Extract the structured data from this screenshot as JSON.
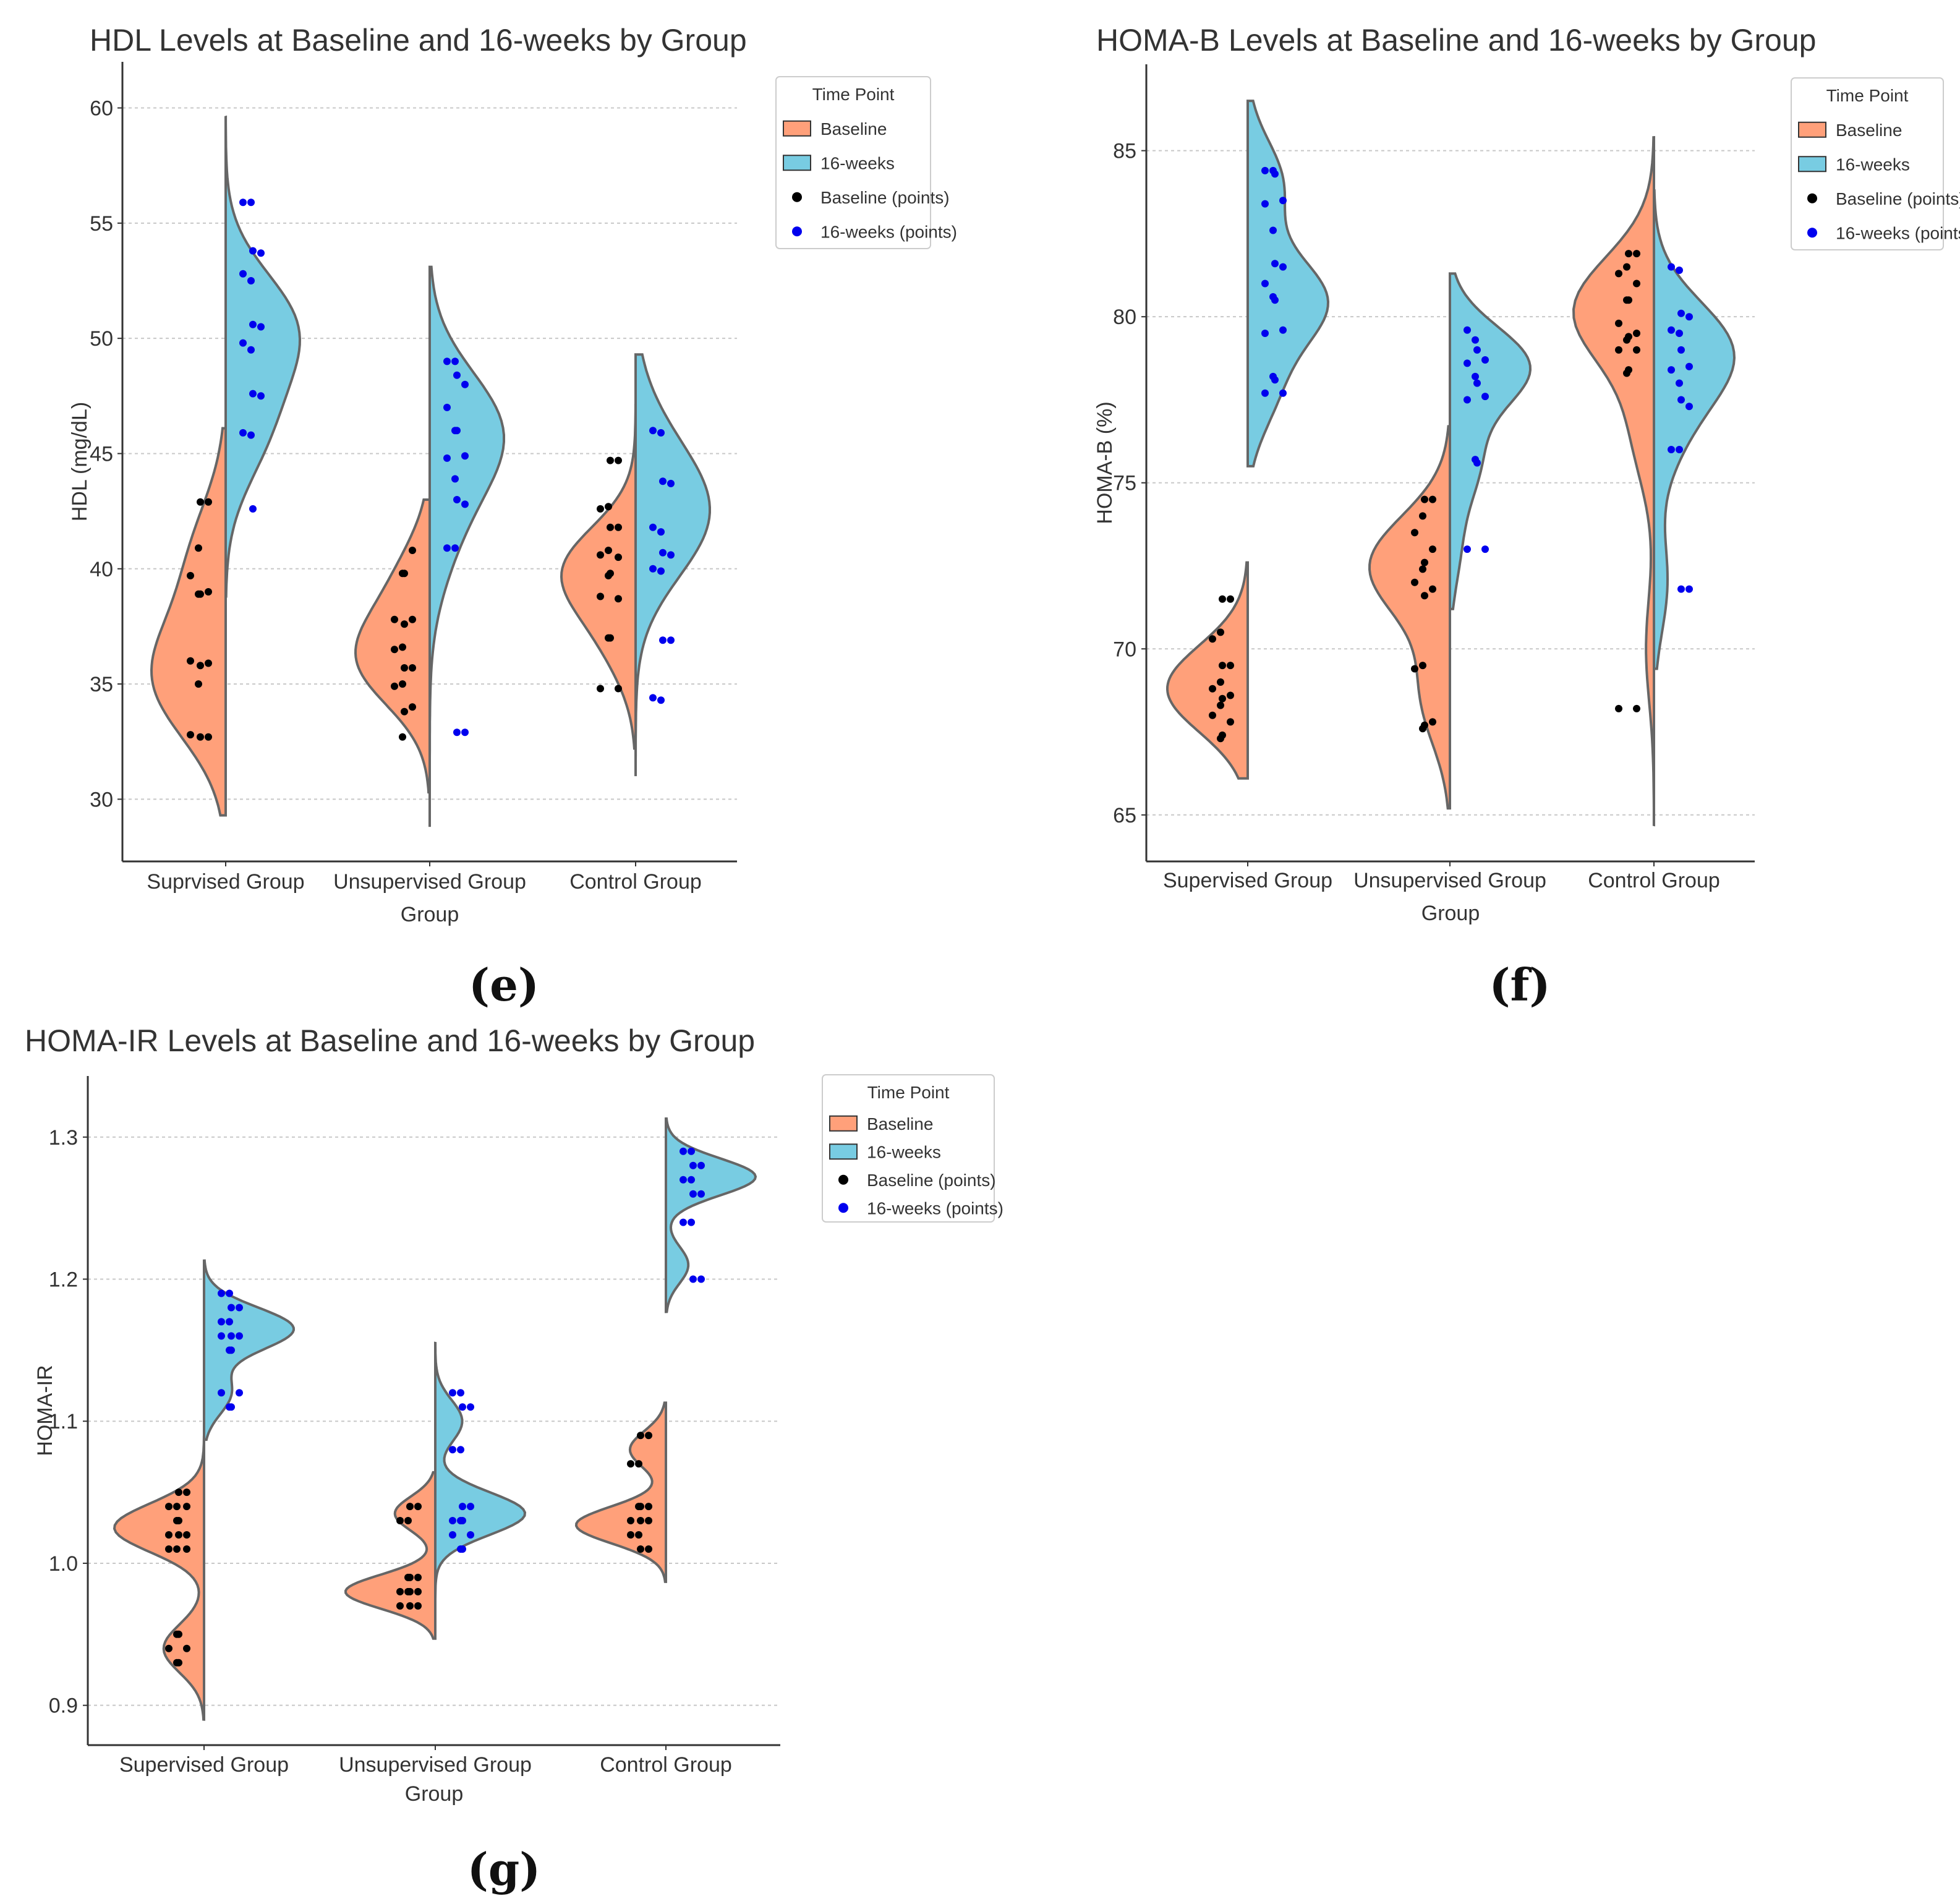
{
  "colors": {
    "baseline": "#FFA07A",
    "week16": "#78CCE2",
    "baseline_points": "#000000",
    "week16_points": "#0000EE"
  },
  "chart_data": [
    {
      "id": "e",
      "type": "violin",
      "panel_label": "(e)",
      "title": "HDL Levels at Baseline and 16-weeks by Group",
      "xlabel": "Group",
      "ylabel": "HDL (mg/dL)",
      "ylim": [
        27.3,
        62.0
      ],
      "yticks": [
        30,
        35,
        40,
        45,
        50,
        55,
        60
      ],
      "grid": true,
      "categories": [
        "Suprvised Group",
        "Unsupervised Group",
        "Control Group"
      ],
      "legend": {
        "position": "upper-right-outside",
        "title": "Time Point",
        "entries": [
          "Baseline",
          "16-weeks",
          "Baseline (points)",
          "16-weeks (points)"
        ]
      },
      "series": [
        {
          "name": "Baseline",
          "groups": [
            {
              "range": [
                29.3,
                46.1
              ],
              "peaks": [
                [
                  35.2,
                  1.0
                ],
                [
                  40.5,
                  0.45
                ]
              ],
              "bw": 2.6,
              "points": [
                42.9,
                42.9,
                40.9,
                39.7,
                39.0,
                38.9,
                38.9,
                36.0,
                35.9,
                35.8,
                35.0,
                32.8,
                32.7,
                32.7
              ]
            },
            {
              "range": [
                30.3,
                43.0
              ],
              "peaks": [
                [
                  36.0,
                  1.0
                ],
                [
                  39.5,
                  0.4
                ]
              ],
              "bw": 2.0,
              "points": [
                40.8,
                39.8,
                39.8,
                37.8,
                37.8,
                37.6,
                36.6,
                36.5,
                35.7,
                35.7,
                35.0,
                34.9,
                34.0,
                33.8,
                32.7
              ]
            },
            {
              "range": [
                32.2,
                47.1
              ],
              "peaks": [
                [
                  40.0,
                  1.0
                ],
                [
                  36.8,
                  0.35
                ]
              ],
              "bw": 1.9,
              "points": [
                44.7,
                44.7,
                42.7,
                42.6,
                41.8,
                41.8,
                40.8,
                40.6,
                40.5,
                39.8,
                39.7,
                38.8,
                38.7,
                37.0,
                37.0,
                34.8,
                34.8
              ]
            }
          ]
        },
        {
          "name": "16-weeks",
          "groups": [
            {
              "range": [
                38.8,
                59.6
              ],
              "peaks": [
                [
                  50.5,
                  1.0
                ],
                [
                  46.0,
                  0.55
                ]
              ],
              "bw": 2.4,
              "points": [
                55.9,
                55.9,
                53.8,
                53.7,
                52.8,
                52.5,
                50.6,
                50.5,
                49.8,
                49.5,
                47.6,
                47.5,
                45.9,
                45.8,
                42.6
              ]
            },
            {
              "range": [
                28.8,
                53.1
              ],
              "peaks": [
                [
                  46.0,
                  1.0
                ],
                [
                  41.5,
                  0.3
                ]
              ],
              "bw": 2.6,
              "points": [
                49.0,
                49.0,
                48.4,
                48.0,
                47.0,
                46.0,
                46.0,
                44.9,
                44.8,
                43.9,
                43.0,
                42.8,
                40.9,
                40.9,
                32.9,
                32.9
              ]
            },
            {
              "range": [
                31.0,
                49.3
              ],
              "peaks": [
                [
                  42.0,
                  1.0
                ],
                [
                  45.0,
                  0.35
                ]
              ],
              "bw": 2.6,
              "points": [
                46.0,
                45.9,
                43.8,
                43.7,
                41.8,
                41.6,
                40.7,
                40.6,
                40.0,
                39.9,
                36.9,
                36.9,
                34.4,
                34.3
              ]
            }
          ]
        }
      ]
    },
    {
      "id": "f",
      "type": "violin",
      "panel_label": "(f)",
      "title": "HOMA-B Levels at Baseline and 16-weeks by Group",
      "xlabel": "Group",
      "ylabel": "HOMA-B (%)",
      "ylim": [
        63.6,
        87.6
      ],
      "yticks": [
        65,
        70,
        75,
        80,
        85
      ],
      "grid": true,
      "categories": [
        "Supervised Group",
        "Unsupervised Group",
        "Control Group"
      ],
      "legend": {
        "position": "upper-right-outside",
        "title": "Time Point",
        "entries": [
          "Baseline",
          "16-weeks",
          "Baseline (points)",
          "16-weeks (points)"
        ]
      },
      "series": [
        {
          "name": "Baseline",
          "groups": [
            {
              "range": [
                66.1,
                72.6
              ],
              "peaks": [
                [
                  68.8,
                  1.0
                ]
              ],
              "bw": 1.3,
              "points": [
                71.5,
                71.5,
                70.5,
                70.3,
                69.5,
                69.5,
                69.0,
                68.8,
                68.6,
                68.5,
                68.3,
                68.0,
                67.8,
                67.4,
                67.3
              ]
            },
            {
              "range": [
                65.2,
                76.7
              ],
              "peaks": [
                [
                  72.5,
                  1.0
                ],
                [
                  68.6,
                  0.35
                ]
              ],
              "bw": 1.5,
              "points": [
                74.5,
                74.5,
                74.0,
                73.5,
                73.0,
                72.6,
                72.4,
                72.0,
                71.8,
                71.6,
                69.5,
                69.4,
                67.8,
                67.7,
                67.6
              ]
            },
            {
              "range": [
                64.7,
                85.4
              ],
              "peaks": [
                [
                  80.2,
                  1.0
                ],
                [
                  76.5,
                  0.25
                ],
                [
                  70.0,
                  0.1
                ]
              ],
              "bw": 1.6,
              "points": [
                81.9,
                81.9,
                81.5,
                81.3,
                81.0,
                80.5,
                80.5,
                79.8,
                79.5,
                79.4,
                79.3,
                79.0,
                79.0,
                78.4,
                78.3,
                68.2,
                68.2
              ]
            }
          ]
        },
        {
          "name": "16-weeks",
          "groups": [
            {
              "range": [
                75.5,
                86.5
              ],
              "peaks": [
                [
                  80.5,
                  1.0
                ],
                [
                  84.0,
                  0.45
                ],
                [
                  77.8,
                  0.35
                ]
              ],
              "bw": 1.3,
              "points": [
                84.4,
                84.4,
                84.3,
                83.5,
                83.4,
                82.6,
                81.6,
                81.5,
                81.0,
                80.6,
                80.5,
                79.6,
                79.5,
                78.2,
                78.1,
                77.7,
                77.7
              ]
            },
            {
              "range": [
                71.2,
                81.3
              ],
              "peaks": [
                [
                  78.5,
                  1.0
                ],
                [
                  75.6,
                  0.35
                ],
                [
                  73.0,
                  0.12
                ]
              ],
              "bw": 1.2,
              "points": [
                79.6,
                79.3,
                79.0,
                78.7,
                78.6,
                78.2,
                78.0,
                77.6,
                77.5,
                75.7,
                75.6,
                73.0,
                73.0
              ]
            },
            {
              "range": [
                69.4,
                83.8
              ],
              "peaks": [
                [
                  79.0,
                  1.0
                ],
                [
                  76.5,
                  0.3
                ],
                [
                  72.0,
                  0.18
                ]
              ],
              "bw": 1.5,
              "points": [
                81.5,
                81.4,
                80.1,
                80.0,
                79.6,
                79.5,
                79.0,
                78.5,
                78.4,
                78.0,
                77.5,
                77.3,
                76.0,
                76.0,
                71.8,
                71.8
              ]
            }
          ]
        }
      ]
    },
    {
      "id": "g",
      "type": "violin",
      "panel_label": "(g)",
      "title": "HOMA-IR Levels at Baseline and 16-weeks by Group",
      "xlabel": "Group",
      "ylabel": "HOMA-IR",
      "ylim": [
        0.872,
        1.343
      ],
      "yticks": [
        "0.9",
        "1.0",
        "1.1",
        "1.2",
        "1.3"
      ],
      "grid": true,
      "categories": [
        "Supervised Group",
        "Unsupervised Group",
        "Control Group"
      ],
      "legend": {
        "position": "upper-right-outside",
        "title": "Time Point",
        "entries": [
          "Baseline",
          "16-weeks",
          "Baseline (points)",
          "16-weeks (points)"
        ]
      },
      "series": [
        {
          "name": "Baseline",
          "groups": [
            {
              "range": [
                0.89,
                1.089
              ],
              "peaks": [
                [
                  1.025,
                  1.0
                ],
                [
                  0.94,
                  0.45
                ]
              ],
              "bw": 0.017,
              "points": [
                1.05,
                1.05,
                1.04,
                1.04,
                1.04,
                1.03,
                1.03,
                1.02,
                1.02,
                1.02,
                1.01,
                1.01,
                1.01,
                0.95,
                0.95,
                0.94,
                0.94,
                0.93,
                0.93
              ]
            },
            {
              "range": [
                0.947,
                1.064
              ],
              "peaks": [
                [
                  0.98,
                  1.0
                ],
                [
                  1.035,
                  0.45
                ]
              ],
              "bw": 0.012,
              "points": [
                1.04,
                1.04,
                1.03,
                1.03,
                0.99,
                0.99,
                0.99,
                0.98,
                0.98,
                0.98,
                0.98,
                0.97,
                0.97,
                0.97
              ]
            },
            {
              "range": [
                0.987,
                1.113
              ],
              "peaks": [
                [
                  1.027,
                  1.0
                ],
                [
                  1.08,
                  0.4
                ]
              ],
              "bw": 0.013,
              "points": [
                1.09,
                1.09,
                1.07,
                1.07,
                1.04,
                1.04,
                1.04,
                1.03,
                1.03,
                1.03,
                1.02,
                1.02,
                1.01,
                1.01
              ]
            }
          ]
        },
        {
          "name": "16-weeks",
          "groups": [
            {
              "range": [
                1.087,
                1.213
              ],
              "peaks": [
                [
                  1.165,
                  1.0
                ],
                [
                  1.12,
                  0.3
                ]
              ],
              "bw": 0.015,
              "points": [
                1.19,
                1.19,
                1.18,
                1.18,
                1.17,
                1.17,
                1.16,
                1.16,
                1.16,
                1.15,
                1.15,
                1.12,
                1.12,
                1.11,
                1.11
              ]
            },
            {
              "range": [
                0.975,
                1.155
              ],
              "peaks": [
                [
                  1.035,
                  1.0
                ],
                [
                  1.1,
                  0.3
                ]
              ],
              "bw": 0.015,
              "points": [
                1.12,
                1.12,
                1.11,
                1.11,
                1.08,
                1.08,
                1.04,
                1.04,
                1.03,
                1.03,
                1.03,
                1.02,
                1.02,
                1.01,
                1.01
              ]
            },
            {
              "range": [
                1.177,
                1.313
              ],
              "peaks": [
                [
                  1.272,
                  1.0
                ],
                [
                  1.21,
                  0.25
                ]
              ],
              "bw": 0.013,
              "points": [
                1.29,
                1.29,
                1.28,
                1.28,
                1.27,
                1.27,
                1.26,
                1.26,
                1.24,
                1.24,
                1.2,
                1.2
              ]
            }
          ]
        }
      ]
    }
  ]
}
